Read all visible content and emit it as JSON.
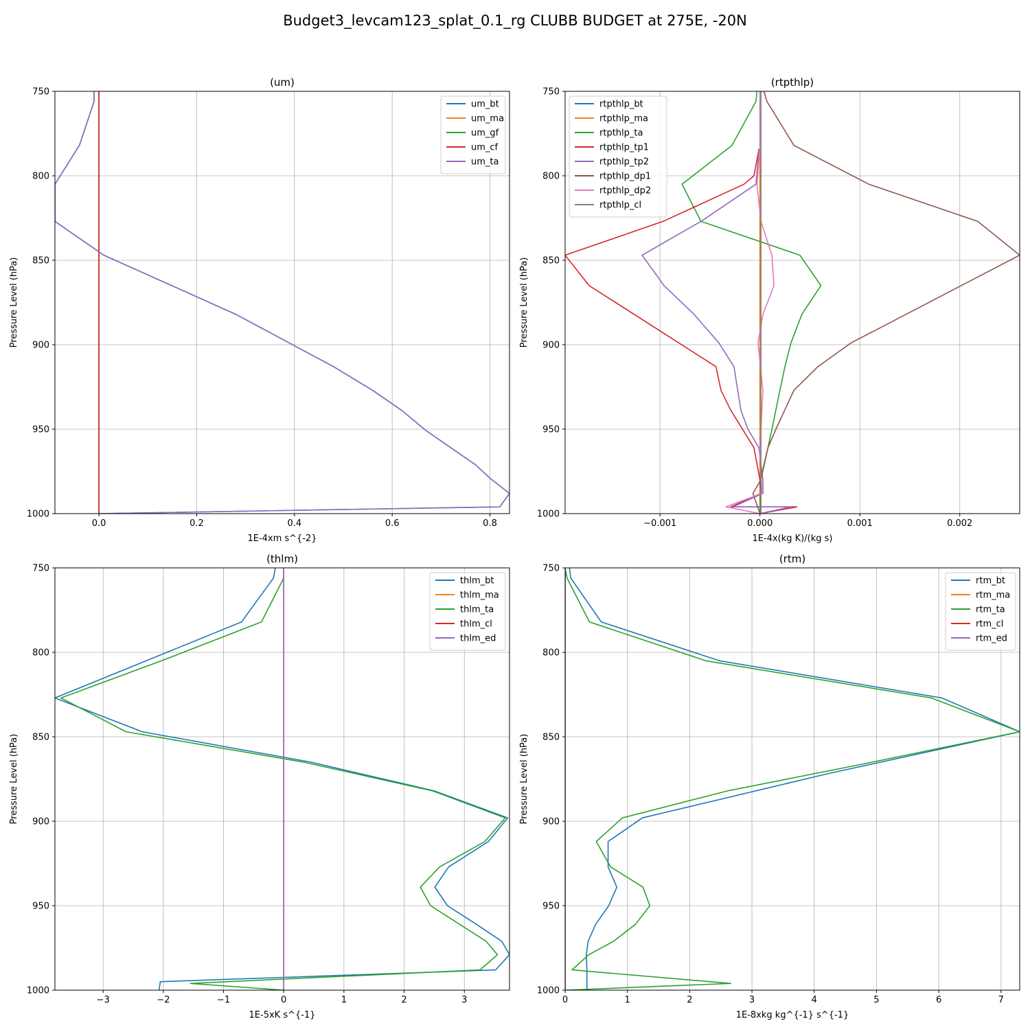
{
  "figure": {
    "title": "Budget3_levcam123_splat_0.1_rg CLUBB BUDGET at 275E, -20N"
  },
  "chart_data": [
    {
      "type": "line",
      "title": "(um)",
      "xlabel": "1E-4xm s^{-2}",
      "ylabel": "Pressure Level (hPa)",
      "xlim": [
        -0.09,
        0.84
      ],
      "ylim": [
        1000,
        750
      ],
      "xticks": [
        0.0,
        0.2,
        0.4,
        0.6,
        0.8
      ],
      "xtick_labels": [
        "0.0",
        "0.2",
        "0.4",
        "0.6",
        "0.8"
      ],
      "yticks": [
        750,
        800,
        850,
        900,
        950,
        1000
      ],
      "ytick_labels": [
        "750",
        "800",
        "850",
        "900",
        "950",
        "1000"
      ],
      "grid": true,
      "legend_position": "top-right",
      "series": [
        {
          "name": "um_bt",
          "color": "#1f77b4",
          "x": [
            -0.01,
            -0.01,
            -0.04,
            -0.09,
            -0.09,
            0.01,
            0.28,
            0.48,
            0.56,
            0.62,
            0.67,
            0.72,
            0.77,
            0.8,
            0.84,
            0.82,
            0.0
          ],
          "y": [
            750,
            756,
            782,
            805,
            827,
            847,
            882,
            913,
            927,
            939,
            951,
            961,
            971,
            979,
            988,
            996,
            1000
          ]
        },
        {
          "name": "um_ma",
          "color": "#ff7f0e",
          "x": [
            0,
            0
          ],
          "y": [
            750,
            1000
          ]
        },
        {
          "name": "um_gf",
          "color": "#2ca02c",
          "x": [
            0,
            0
          ],
          "y": [
            750,
            1000
          ]
        },
        {
          "name": "um_cf",
          "color": "#d62728",
          "x": [
            0,
            0
          ],
          "y": [
            750,
            1000
          ]
        },
        {
          "name": "um_ta",
          "color": "#9467bd",
          "x": [
            -0.01,
            -0.01,
            -0.04,
            -0.09,
            -0.09,
            0.01,
            0.28,
            0.48,
            0.56,
            0.62,
            0.67,
            0.72,
            0.77,
            0.8,
            0.84,
            0.82,
            0.0
          ],
          "y": [
            750,
            756,
            782,
            805,
            827,
            847,
            882,
            913,
            927,
            939,
            951,
            961,
            971,
            979,
            988,
            996,
            1000
          ]
        }
      ]
    },
    {
      "type": "line",
      "title": "(rtpthlp)",
      "xlabel": "1E-4x(kg K)/(kg s)",
      "ylabel": "Pressure Level (hPa)",
      "xlim": [
        -0.00195,
        0.0026
      ],
      "ylim": [
        1000,
        750
      ],
      "xticks": [
        -0.001,
        0.0,
        0.001,
        0.002
      ],
      "xtick_labels": [
        "−0.001",
        "0.000",
        "0.001",
        "0.002"
      ],
      "yticks": [
        750,
        800,
        850,
        900,
        950,
        1000
      ],
      "ytick_labels": [
        "750",
        "800",
        "850",
        "900",
        "950",
        "1000"
      ],
      "grid": true,
      "legend_position": "top-left",
      "series": [
        {
          "name": "rtpthlp_bt",
          "color": "#1f77b4",
          "x": [
            0,
            0
          ],
          "y": [
            750,
            1000
          ]
        },
        {
          "name": "rtpthlp_ma",
          "color": "#ff7f0e",
          "x": [
            0,
            0
          ],
          "y": [
            750,
            1000
          ]
        },
        {
          "name": "rtpthlp_ta",
          "color": "#2ca02c",
          "x": [
            -3e-05,
            -4e-05,
            -0.00028,
            -0.00078,
            -0.00059,
            0.0004,
            0.00061,
            0.00042,
            0.00031,
            0.00025,
            0.0002,
            0.00012,
            8e-05,
            4e-05,
            1e-05,
            0.0
          ],
          "y": [
            750,
            756,
            782,
            805,
            827,
            847,
            865,
            882,
            899,
            913,
            927,
            950,
            961,
            971,
            980,
            1000
          ]
        },
        {
          "name": "rtpthlp_tp1",
          "color": "#d62728",
          "x": [
            -1e-05,
            -6e-05,
            -0.00016,
            -0.00097,
            -0.00195,
            -0.00171,
            -0.00081,
            -0.00044,
            -0.00039,
            -0.00029,
            -6e-05,
            0.0,
            1e-05,
            -0.00029,
            0.00037,
            0.0
          ],
          "y": [
            784,
            800,
            805,
            827,
            847,
            865,
            899,
            913,
            927,
            939,
            961,
            980,
            988,
            996,
            996,
            1000
          ]
        },
        {
          "name": "rtpthlp_tp2",
          "color": "#9467bd",
          "x": [
            -1e-05,
            -4e-05,
            -0.00059,
            -0.00118,
            -0.00096,
            -0.00066,
            -0.00041,
            -0.00026,
            -0.00019,
            -0.00012,
            -1e-05,
            3e-05,
            3e-05,
            -0.00027,
            0.00031,
            0.0
          ],
          "y": [
            784,
            805,
            827,
            847,
            865,
            882,
            899,
            913,
            939,
            950,
            961,
            980,
            988,
            996,
            996,
            1000
          ]
        },
        {
          "name": "rtpthlp_dp1",
          "color": "#8c564b",
          "x": [
            4e-05,
            7e-05,
            0.00034,
            0.00109,
            0.00218,
            0.0026,
            0.00091,
            0.00058,
            0.00034,
            0.00016,
            8e-05,
            1e-05,
            -7e-05,
            0.0
          ],
          "y": [
            750,
            756,
            782,
            805,
            827,
            847,
            899,
            913,
            927,
            950,
            961,
            980,
            988,
            1000
          ]
        },
        {
          "name": "rtpthlp_dp2",
          "color": "#e377c2",
          "x": [
            0.0,
            0.0,
            -3e-05,
            1e-05,
            0.00012,
            0.00014,
            3e-05,
            -2e-05,
            3e-05,
            1e-05,
            0.0,
            2e-05,
            -0.00034,
            0.0
          ],
          "y": [
            750,
            784,
            805,
            827,
            847,
            865,
            882,
            899,
            927,
            950,
            961,
            988,
            996,
            1000
          ]
        },
        {
          "name": "rtpthlp_cl",
          "color": "#7f7f7f",
          "x": [
            1e-05,
            1e-05
          ],
          "y": [
            750,
            1000
          ]
        }
      ]
    },
    {
      "type": "line",
      "title": "(thlm)",
      "xlabel": "1E-5xK s^{-1}",
      "ylabel": "Pressure Level (hPa)",
      "xlim": [
        -3.8,
        3.75
      ],
      "ylim": [
        1000,
        750
      ],
      "xticks": [
        -3,
        -2,
        -1,
        0,
        1,
        2,
        3
      ],
      "xtick_labels": [
        "−3",
        "−2",
        "−1",
        "0",
        "1",
        "2",
        "3"
      ],
      "yticks": [
        750,
        800,
        850,
        900,
        950,
        1000
      ],
      "ytick_labels": [
        "750",
        "800",
        "850",
        "900",
        "950",
        "1000"
      ],
      "grid": true,
      "legend_position": "top-right",
      "series": [
        {
          "name": "thlm_bt",
          "color": "#1f77b4",
          "x": [
            -0.14,
            -0.17,
            -0.7,
            -3.8,
            -2.35,
            0.45,
            2.5,
            3.72,
            3.4,
            2.74,
            2.51,
            2.72,
            3.2,
            3.62,
            3.75,
            3.52,
            -2.05,
            -2.07
          ],
          "y": [
            750,
            756,
            782,
            827,
            847,
            865,
            882,
            898,
            912,
            927,
            939,
            950,
            961,
            971,
            979,
            988,
            995,
            1000
          ]
        },
        {
          "name": "thlm_ma",
          "color": "#ff7f0e",
          "x": [
            0,
            0
          ],
          "y": [
            750,
            1000
          ]
        },
        {
          "name": "thlm_ta",
          "color": "#2ca02c",
          "x": [
            0.0,
            0.0,
            -0.37,
            -2.03,
            -3.7,
            -2.62,
            0.33,
            2.47,
            3.68,
            3.34,
            2.59,
            2.27,
            2.44,
            3.36,
            3.55,
            3.26,
            -1.55,
            0.0
          ],
          "y": [
            750,
            756,
            782,
            805,
            827,
            847,
            865,
            882,
            898,
            912,
            927,
            939,
            950,
            971,
            979,
            988,
            996,
            1000
          ]
        },
        {
          "name": "thlm_cl",
          "color": "#d62728",
          "x": [
            0,
            0
          ],
          "y": [
            750,
            1000
          ]
        },
        {
          "name": "thlm_ed",
          "color": "#9467bd",
          "x": [
            0,
            0
          ],
          "y": [
            750,
            1000
          ]
        }
      ]
    },
    {
      "type": "line",
      "title": "(rtm)",
      "xlabel": "1E-8xkg kg^{-1} s^{-1}",
      "ylabel": "Pressure Level (hPa)",
      "xlim": [
        0,
        7.3
      ],
      "ylim": [
        1000,
        750
      ],
      "xticks": [
        0,
        1,
        2,
        3,
        4,
        5,
        6,
        7
      ],
      "xtick_labels": [
        "0",
        "1",
        "2",
        "3",
        "4",
        "5",
        "6",
        "7"
      ],
      "yticks": [
        750,
        800,
        850,
        900,
        950,
        1000
      ],
      "ytick_labels": [
        "750",
        "800",
        "850",
        "900",
        "950",
        "1000"
      ],
      "grid": true,
      "legend_position": "top-right",
      "series": [
        {
          "name": "rtm_bt",
          "color": "#1f77b4",
          "x": [
            0.07,
            0.09,
            0.58,
            2.48,
            6.05,
            7.3,
            4.2,
            1.24,
            0.69,
            0.69,
            0.83,
            0.7,
            0.49,
            0.37,
            0.34,
            0.35,
            0.35
          ],
          "y": [
            750,
            756,
            782,
            805,
            827,
            847,
            872,
            898,
            912,
            927,
            939,
            950,
            961,
            971,
            979,
            988,
            1000
          ]
        },
        {
          "name": "rtm_ma",
          "color": "#ff7f0e",
          "x": [
            0,
            0
          ],
          "y": [
            750,
            1000
          ]
        },
        {
          "name": "rtm_ta",
          "color": "#2ca02c",
          "x": [
            0.0,
            0.03,
            0.39,
            2.26,
            5.88,
            7.3,
            4.8,
            2.61,
            0.92,
            0.5,
            0.73,
            1.25,
            1.36,
            1.13,
            0.78,
            0.38,
            0.11,
            2.66,
            0.0
          ],
          "y": [
            750,
            756,
            782,
            805,
            827,
            847,
            866,
            882,
            898,
            912,
            927,
            939,
            950,
            961,
            971,
            979,
            988,
            996,
            1000
          ]
        },
        {
          "name": "rtm_cl",
          "color": "#d62728",
          "x": [
            0,
            0
          ],
          "y": [
            750,
            1000
          ]
        },
        {
          "name": "rtm_ed",
          "color": "#9467bd",
          "x": [
            0,
            0
          ],
          "y": [
            750,
            1000
          ]
        }
      ]
    }
  ]
}
